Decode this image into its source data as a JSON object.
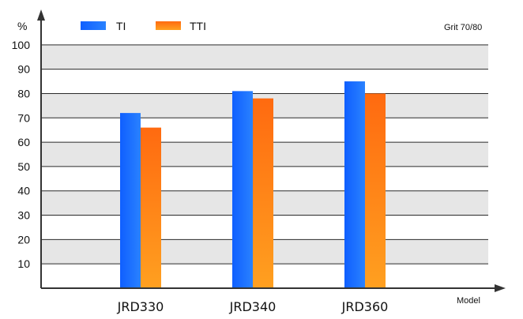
{
  "chart_data": {
    "type": "bar",
    "categories": [
      "JRD330",
      "JRD340",
      "JRD360"
    ],
    "series": [
      {
        "name": "TI",
        "values": [
          72,
          81,
          85
        ],
        "color": "#1a6eff"
      },
      {
        "name": "TTI",
        "values": [
          66,
          78,
          80
        ],
        "color": "#ff7a14"
      }
    ],
    "ylabel": "%",
    "xlabel": "Model",
    "annotation": "Grit 70/80",
    "yticks": [
      10,
      20,
      30,
      40,
      50,
      60,
      70,
      80,
      90,
      100
    ],
    "ylim": [
      0,
      110
    ],
    "grid": true,
    "legend_position": "top-left"
  }
}
